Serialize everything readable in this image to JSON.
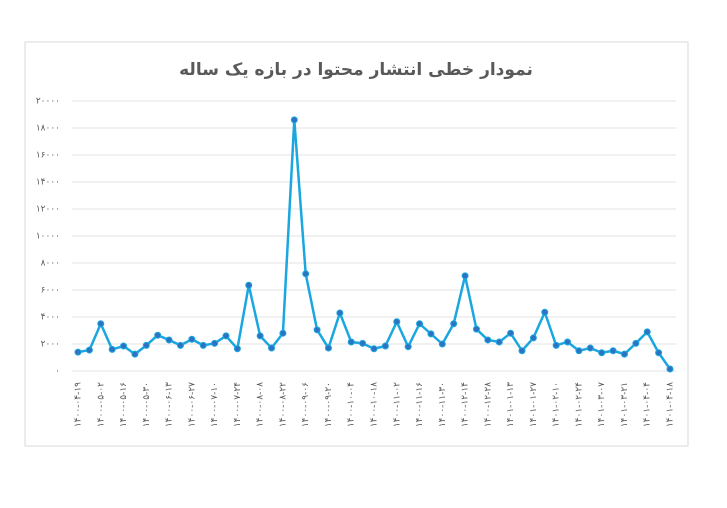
{
  "chart_data": {
    "type": "line",
    "title": "نمودار خطی انتشار محتوا در بازه یک ساله",
    "categories": [
      "۱۴۰۰-۰۴-۱۹",
      null,
      "۱۴۰۰-۰۵-۰۲",
      null,
      "۱۴۰۰-۰۵-۱۶",
      null,
      "۱۴۰۰-۰۵-۳۰",
      null,
      "۱۴۰۰-۰۶-۱۳",
      null,
      "۱۴۰۰-۰۶-۲۷",
      null,
      "۱۴۰۰-۰۷-۱۰",
      null,
      "۱۴۰۰-۰۷-۲۴",
      null,
      "۱۴۰۰-۰۸-۰۸",
      null,
      "۱۴۰۰-۰۸-۲۲",
      null,
      "۱۴۰۰-۰۹-۰۶",
      null,
      "۱۴۰۰-۰۹-۲۰",
      null,
      "۱۴۰۰-۱۰-۰۴",
      null,
      "۱۴۰۰-۱۰-۱۸",
      null,
      "۱۴۰۰-۱۱-۰۲",
      null,
      "۱۴۰۰-۱۱-۱۶",
      null,
      "۱۴۰۰-۱۱-۳۰",
      null,
      "۱۴۰۰-۱۲-۱۴",
      null,
      "۱۴۰۰-۱۲-۲۸",
      null,
      "۱۴۰۱-۰۱-۱۳",
      null,
      "۱۴۰۱-۰۱-۲۷",
      null,
      "۱۴۰۱-۰۲-۱۰",
      null,
      "۱۴۰۱-۰۲-۲۴",
      null,
      "۱۴۰۱-۰۳-۰۷",
      null,
      "۱۴۰۱-۰۳-۲۱",
      null,
      "۱۴۰۱-۰۴-۰۴",
      null,
      "۱۴۰۱-۰۴-۱۸"
    ],
    "series": [
      {
        "color": "#1aa7df",
        "values": [
          1400,
          1550,
          3500,
          1600,
          1850,
          1250,
          1900,
          2650,
          2300,
          1900,
          2350,
          1900,
          2050,
          2600,
          1650,
          6350,
          2600,
          1700,
          2800,
          18600,
          7200,
          3050,
          1700,
          4300,
          2150,
          2050,
          1650,
          1850,
          3650,
          1800,
          3500,
          2750,
          2000,
          3500,
          7050,
          3100,
          2300,
          2150,
          2800,
          1500,
          2450,
          4350,
          1900,
          2150,
          1500,
          1700,
          1350,
          1500,
          1250,
          2050,
          2900,
          1350,
          150
        ]
      }
    ],
    "ylim": [
      0,
      20000
    ],
    "yticks": [
      {
        "value": 0,
        "label": "۰"
      },
      {
        "value": 2000,
        "label": "۲۰۰۰"
      },
      {
        "value": 4000,
        "label": "۴۰۰۰"
      },
      {
        "value": 6000,
        "label": "۶۰۰۰"
      },
      {
        "value": 8000,
        "label": "۸۰۰۰"
      },
      {
        "value": 10000,
        "label": "۱۰۰۰۰"
      },
      {
        "value": 12000,
        "label": "۱۲۰۰۰"
      },
      {
        "value": 14000,
        "label": "۱۴۰۰۰"
      },
      {
        "value": 16000,
        "label": "۱۶۰۰۰"
      },
      {
        "value": 18000,
        "label": "۱۸۰۰۰"
      },
      {
        "value": 20000,
        "label": "۲۰۰۰۰"
      }
    ],
    "grid": true
  }
}
